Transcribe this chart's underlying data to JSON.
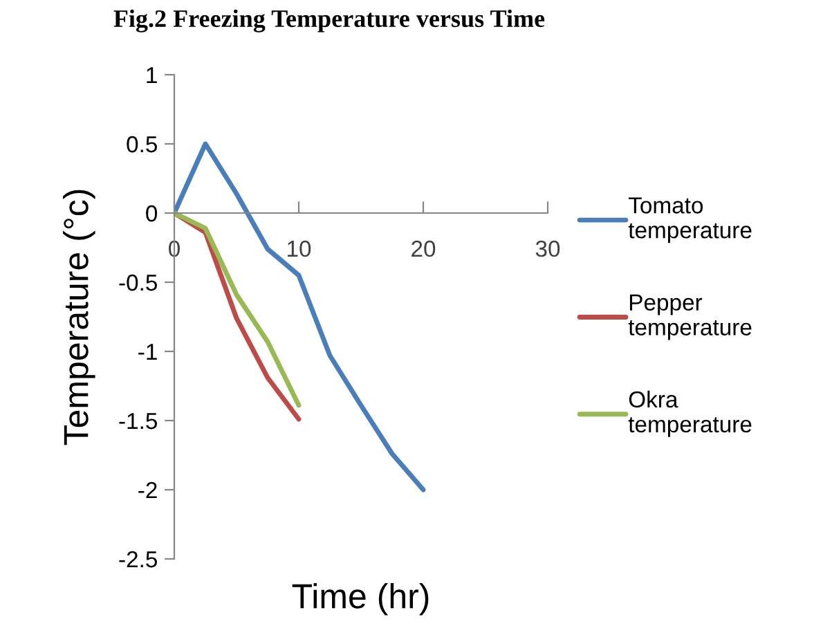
{
  "chart_data": {
    "type": "line",
    "title": "Fig.2 Freezing Temperature versus Time",
    "xlabel": "Time (hr)",
    "ylabel": "Temperature (°c)",
    "x": [
      0,
      2.5,
      5,
      7.5,
      10,
      12.5,
      15,
      17.5,
      20
    ],
    "series": [
      {
        "name": "Tomato temperature",
        "color": "#4a7ebb",
        "values": [
          0,
          0.5,
          0.14,
          -0.26,
          -0.45,
          -1.03,
          -1.39,
          -1.74,
          -2
        ]
      },
      {
        "name": "Pepper temperature",
        "color": "#be4b48",
        "x": [
          0,
          2.5,
          5,
          7.5,
          10
        ],
        "values": [
          0,
          -0.14,
          -0.76,
          -1.19,
          -1.49
        ]
      },
      {
        "name": "Okra temperature",
        "color": "#98b954",
        "x": [
          0,
          2.5,
          5,
          7.5,
          10
        ],
        "values": [
          0,
          -0.11,
          -0.59,
          -0.93,
          -1.39
        ]
      }
    ],
    "xlim": [
      0,
      30
    ],
    "xticks": [
      0,
      10,
      20,
      30
    ],
    "ylim": [
      -2.5,
      1
    ],
    "yticks": [
      -2.5,
      -2,
      -1.5,
      -1,
      -0.5,
      0,
      0.5,
      1
    ],
    "grid": false,
    "legend": "right",
    "marker": "none",
    "line_style": "solid"
  }
}
